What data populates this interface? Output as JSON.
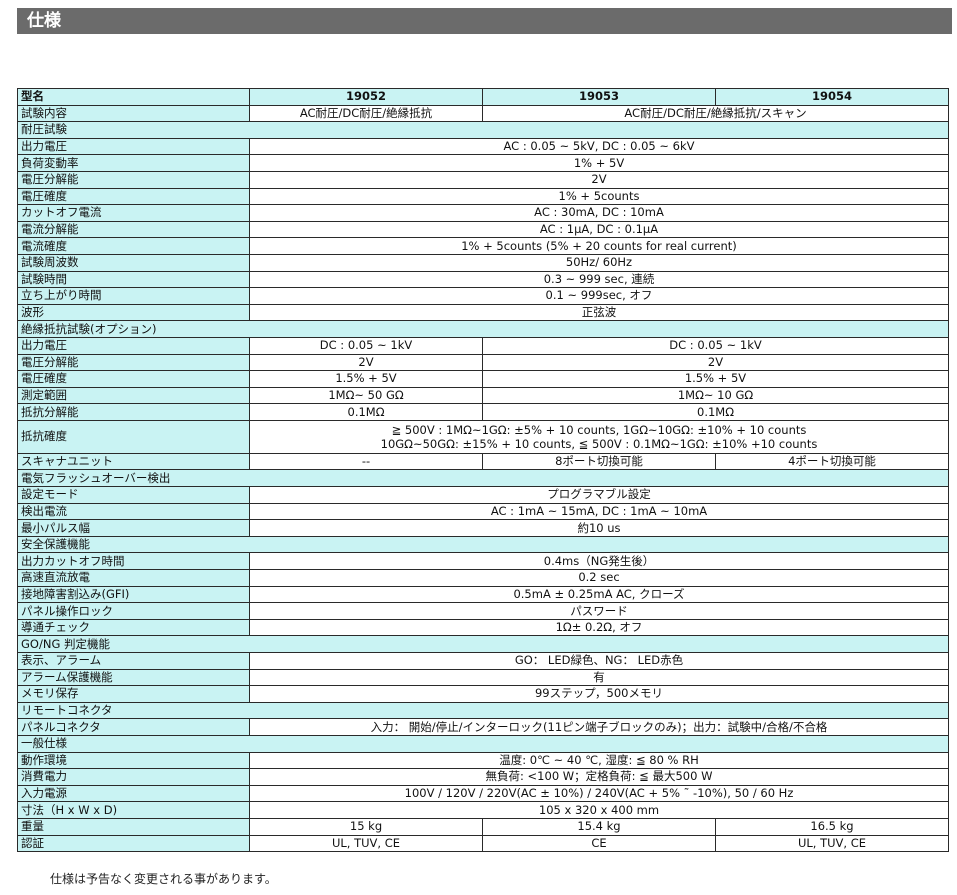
{
  "page_title": "仕様",
  "header": {
    "label": "型名",
    "models": [
      "19052",
      "19053",
      "19054"
    ]
  },
  "rows": {
    "test_content": {
      "label": "試験内容",
      "v1": "AC耐圧/DC耐圧/絶縁抵抗",
      "v23": "AC耐圧/DC耐圧/絶縁抵抗/スキャン"
    },
    "withstand_section": "耐圧試験",
    "output_voltage": {
      "label": "出力電圧",
      "value": "AC : 0.05 ~ 5kV, DC : 0.05 ~ 6kV"
    },
    "load_regulation": {
      "label": "負荷変動率",
      "value": "1% + 5V"
    },
    "voltage_resolution": {
      "label": "電圧分解能",
      "value": "2V"
    },
    "voltage_accuracy": {
      "label": "電圧確度",
      "value": "1% + 5counts"
    },
    "cutoff_current": {
      "label": "カットオフ電流",
      "value": "AC : 30mA, DC : 10mA"
    },
    "current_resolution": {
      "label": "電流分解能",
      "value": "AC : 1μA, DC : 0.1μA"
    },
    "current_accuracy": {
      "label": "電流確度",
      "value": "1% + 5counts (5% + 20 counts for real current)"
    },
    "test_frequency": {
      "label": "試験周波数",
      "value": "50Hz/ 60Hz"
    },
    "test_time": {
      "label": "試験時間",
      "value": "0.3 ~ 999 sec, 連続"
    },
    "rise_time": {
      "label": "立ち上がり時間",
      "value": "0.1 ~ 999sec, オフ"
    },
    "waveform": {
      "label": "波形",
      "value": "正弦波"
    },
    "insulation_section": "絶縁抵抗試験(オプション)",
    "ir_output_voltage": {
      "label": "出力電圧",
      "v1": "DC : 0.05 ~ 1kV",
      "v23": "DC : 0.05 ~ 1kV"
    },
    "ir_voltage_resolution": {
      "label": "電圧分解能",
      "v1": "2V",
      "v23": "2V"
    },
    "ir_voltage_accuracy": {
      "label": "電圧確度",
      "v1": "1.5% + 5V",
      "v23": "1.5% + 5V"
    },
    "measure_range": {
      "label": "測定範囲",
      "v1": "1MΩ~ 50 GΩ",
      "v23": "1MΩ~ 10 GΩ"
    },
    "resistance_resolution": {
      "label": "抵抗分解能",
      "v1": "0.1MΩ",
      "v23": "0.1MΩ"
    },
    "resistance_accuracy": {
      "label": "抵抗確度",
      "line1": "≧ 500V : 1MΩ~1GΩ: ±5% + 10 counts, 1GΩ~10GΩ: ±10% + 10 counts",
      "line2": "10GΩ~50GΩ: ±15% + 10 counts, ≦ 500V : 0.1MΩ~1GΩ: ±10% +10 counts"
    },
    "scanner_unit": {
      "label": "スキャナユニット",
      "v1": "--",
      "v2": "8ポート切換可能",
      "v3": "4ポート切換可能"
    },
    "flashover_section": "電気フラッシュオーバー検出",
    "setting_mode": {
      "label": "設定モード",
      "value": "プログラマブル設定"
    },
    "detect_current": {
      "label": "検出電流",
      "value": "AC : 1mA ~ 15mA, DC : 1mA ~ 10mA"
    },
    "min_pulse_width": {
      "label": "最小パルス幅",
      "value": "約10 us"
    },
    "safety_section": "安全保護機能",
    "output_cutoff_time": {
      "label": "出力カットオフ時間",
      "value": "0.4ms（NG発生後）"
    },
    "fast_discharge": {
      "label": "高速直流放電",
      "value": "0.2 sec"
    },
    "gfi": {
      "label": "接地障害割込み(GFI)",
      "value": "0.5mA ± 0.25mA AC, クローズ"
    },
    "panel_lock": {
      "label": "パネル操作ロック",
      "value": "パスワード"
    },
    "continuity_check": {
      "label": "導通チェック",
      "value": "1Ω± 0.2Ω, オフ"
    },
    "gong_section": "GO/NG 判定機能",
    "display_alarm": {
      "label": "表示、アラーム",
      "value": "GO： LED緑色、NG： LED赤色"
    },
    "alarm_protect": {
      "label": "アラーム保護機能",
      "value": "有"
    },
    "memory": {
      "label": "メモリ保存",
      "value": "99ステップ，500メモリ"
    },
    "remote_section": "リモートコネクタ",
    "panel_connector": {
      "label": "パネルコネクタ",
      "value": "入力： 開始/停止/インターロック(11ピン端子ブロックのみ)；出力：試験中/合格/不合格"
    },
    "general_section": "一般仕様",
    "environment": {
      "label": "動作環境",
      "value": "温度: 0℃ ~ 40 ℃, 湿度: ≦ 80 % RH"
    },
    "power_consumption": {
      "label": "消費電力",
      "value": "無負荷: <100 W；定格負荷: ≦ 最大500 W"
    },
    "input_power": {
      "label": "入力電源",
      "value": "100V / 120V / 220V(AC ± 10%) / 240V(AC + 5% ˜ -10%), 50 / 60 Hz"
    },
    "dimensions": {
      "label": "寸法（H x W x D)",
      "value": "105 x 320 x 400 mm"
    },
    "weight": {
      "label": "重量",
      "v1": "15 kg",
      "v2": "15.4 kg",
      "v3": "16.5 kg"
    },
    "certification": {
      "label": "認証",
      "v1": "UL, TUV, CE",
      "v2": "CE",
      "v3": "UL, TUV, CE"
    }
  },
  "footnote": "仕様は予告なく変更される事があります。"
}
